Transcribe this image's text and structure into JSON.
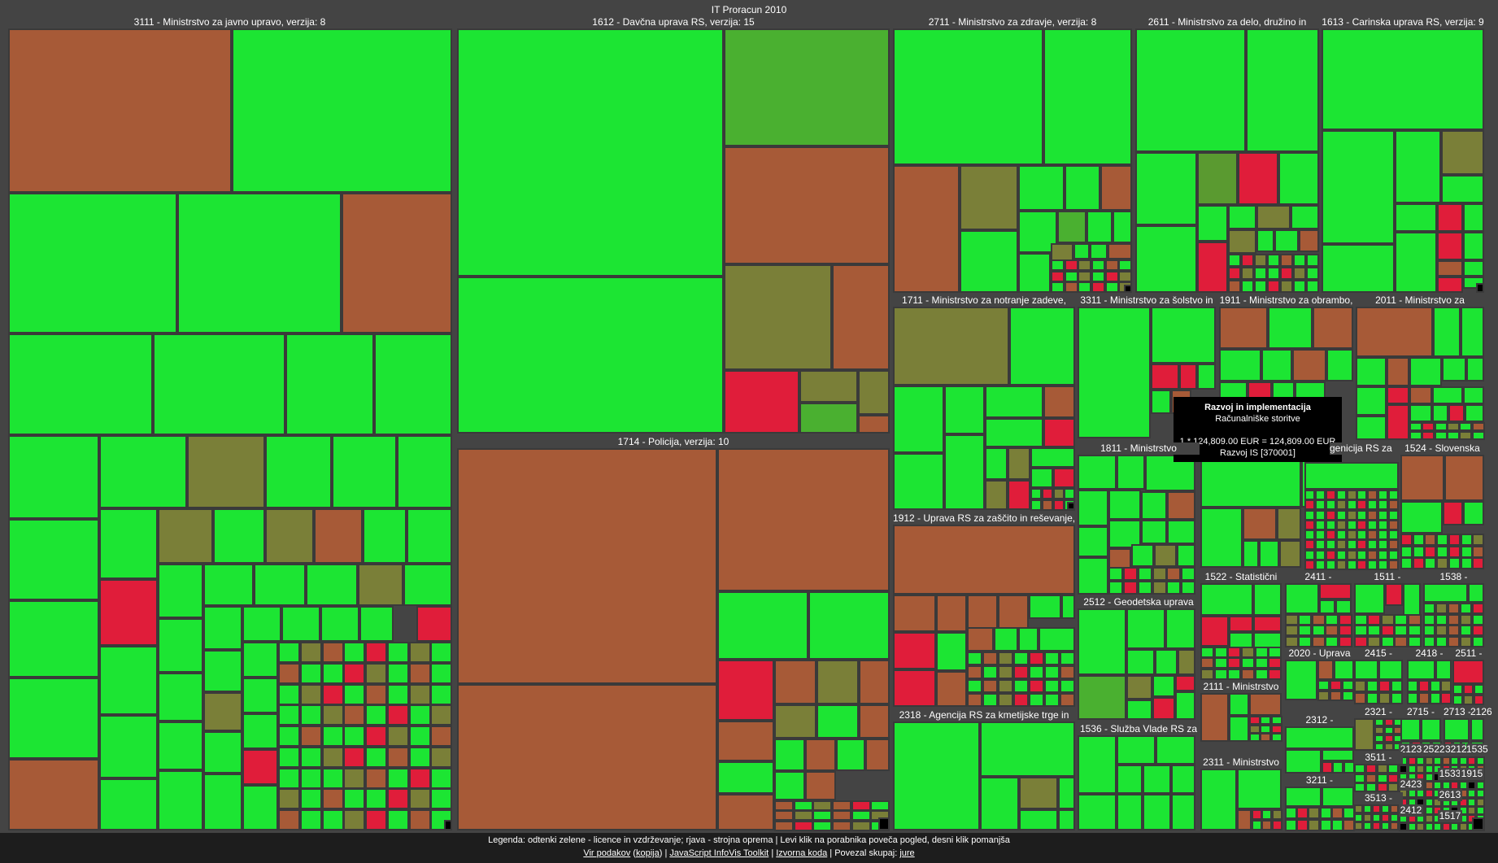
{
  "title": "IT Proracun 2010",
  "colors": {
    "green": "#1ce533",
    "olive": "#7a7f38",
    "olive2": "#5a9a30",
    "olive3": "#4ab030",
    "brown": "#a75a37",
    "red": "#e01d3a",
    "black": "#000000"
  },
  "groups": [
    {
      "label": "3111 - Ministrstvo za javno upravo, verzija: 8"
    },
    {
      "label": "1612 - Davčna uprava RS, verzija: 15"
    },
    {
      "label": "2711 - Ministrstvo za zdravje, verzija: 8"
    },
    {
      "label": "2611 - Ministrstvo za delo, družino in"
    },
    {
      "label": "1613 - Carinska uprava RS, verzija: 9"
    },
    {
      "label": "1714 - Policija, verzija: 10"
    },
    {
      "label": "1711 - Ministrstvo za notranje zadeve,"
    },
    {
      "label": "3311 - Ministrstvo za šolstvo in"
    },
    {
      "label": "1911 - Ministrstvo za obrambo,"
    },
    {
      "label": "2011 - Ministrstvo za"
    },
    {
      "label": "1811 - Ministrstvo"
    },
    {
      "label": "genicija RS za"
    },
    {
      "label": "1524 - Slovenska"
    },
    {
      "label": "1912 - Uprava RS za zaščito in reševanje,"
    },
    {
      "label": "1522 - Statistični"
    },
    {
      "label": "2411 -"
    },
    {
      "label": "1511 -"
    },
    {
      "label": "1538 -"
    },
    {
      "label": "2512 - Geodetska uprava"
    },
    {
      "label": "2020 - Uprava"
    },
    {
      "label": "2415 -"
    },
    {
      "label": "2418 -"
    },
    {
      "label": "2511 -"
    },
    {
      "label": "2111 - Ministrstvo"
    },
    {
      "label": "2321 -"
    },
    {
      "label": "2715 -"
    },
    {
      "label": "2713 -"
    },
    {
      "label": "2126"
    },
    {
      "label": "2318 - Agencija RS za kmetijske trge in"
    },
    {
      "label": "1536 - Služba Vlade RS za"
    },
    {
      "label": "2312 -"
    },
    {
      "label": "2123"
    },
    {
      "label": "2522"
    },
    {
      "label": "3212"
    },
    {
      "label": "1535"
    },
    {
      "label": "2311 - Ministrstvo"
    },
    {
      "label": "3511 -"
    },
    {
      "label": "1533"
    },
    {
      "label": "1915"
    },
    {
      "label": "2423"
    },
    {
      "label": "3211 -"
    },
    {
      "label": "2613"
    },
    {
      "label": "3513 -"
    },
    {
      "label": "2412"
    },
    {
      "label": "1517"
    }
  ],
  "tooltip": {
    "title": "Razvoj in implementacija",
    "subtitle": "Računalniške storitve",
    "calc": "1 * 124,809.00 EUR = 124,809.00 EUR",
    "code": "Razvoj IS [370001]"
  },
  "footer": {
    "legend": "Legenda: odtenki zelene - licence in vzdrževanje; rjava - strojna oprema | Levi klik na porabnika poveča pogled, desni klik pomanjša",
    "link_source": "Vir podakov",
    "link_copy": "kopija",
    "link_toolkit": "JavaScript InfoVis Toolkit",
    "link_code": "Izvorna koda",
    "connected_label": "Povezal skupaj:",
    "author": "jure"
  }
}
